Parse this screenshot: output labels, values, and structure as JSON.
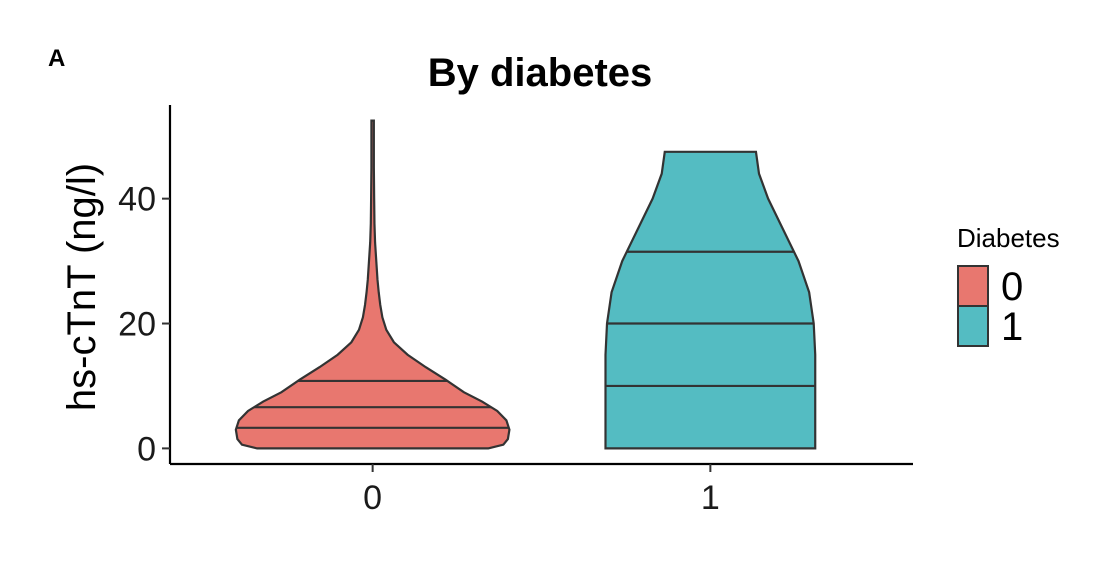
{
  "panel_label": "A",
  "chart_data": {
    "type": "violin",
    "title": "By diabetes",
    "xlabel": "",
    "ylabel": "hs-cTnT (ng/l)",
    "categories": [
      "0",
      "1"
    ],
    "ylim": [
      -2.5,
      55
    ],
    "yticks": [
      0,
      20,
      40
    ],
    "grid": false,
    "legend": {
      "title": "Diabetes",
      "position": "right",
      "entries": [
        {
          "label": "0",
          "color": "#E8776F"
        },
        {
          "label": "1",
          "color": "#54BCC2"
        }
      ]
    },
    "series": [
      {
        "category": "0",
        "color": "#E8776F",
        "quantiles": [
          3.3,
          6.6,
          10.8
        ],
        "min": 0,
        "max": 52.5,
        "density_profile": [
          [
            0,
            0.38
          ],
          [
            0.6,
            0.43
          ],
          [
            1.5,
            0.445
          ],
          [
            3,
            0.45
          ],
          [
            4.5,
            0.44
          ],
          [
            6,
            0.41
          ],
          [
            7.5,
            0.36
          ],
          [
            9,
            0.3
          ],
          [
            11,
            0.24
          ],
          [
            13,
            0.175
          ],
          [
            15,
            0.115
          ],
          [
            17,
            0.07
          ],
          [
            19,
            0.045
          ],
          [
            21,
            0.032
          ],
          [
            23,
            0.025
          ],
          [
            25,
            0.02
          ],
          [
            27,
            0.016
          ],
          [
            30,
            0.012
          ],
          [
            33,
            0.008
          ],
          [
            36,
            0.006
          ],
          [
            40,
            0.005
          ],
          [
            45,
            0.004
          ],
          [
            50,
            0.004
          ],
          [
            52.5,
            0.004
          ]
        ]
      },
      {
        "category": "1",
        "color": "#54BCC2",
        "quantiles": [
          10,
          20,
          31.5
        ],
        "min": 0,
        "max": 47.5,
        "density_profile": [
          [
            0,
            0.345
          ],
          [
            5,
            0.345
          ],
          [
            10,
            0.345
          ],
          [
            15,
            0.345
          ],
          [
            20,
            0.34
          ],
          [
            25,
            0.325
          ],
          [
            30,
            0.29
          ],
          [
            35,
            0.24
          ],
          [
            40,
            0.19
          ],
          [
            44,
            0.16
          ],
          [
            47.5,
            0.15
          ]
        ]
      }
    ]
  }
}
